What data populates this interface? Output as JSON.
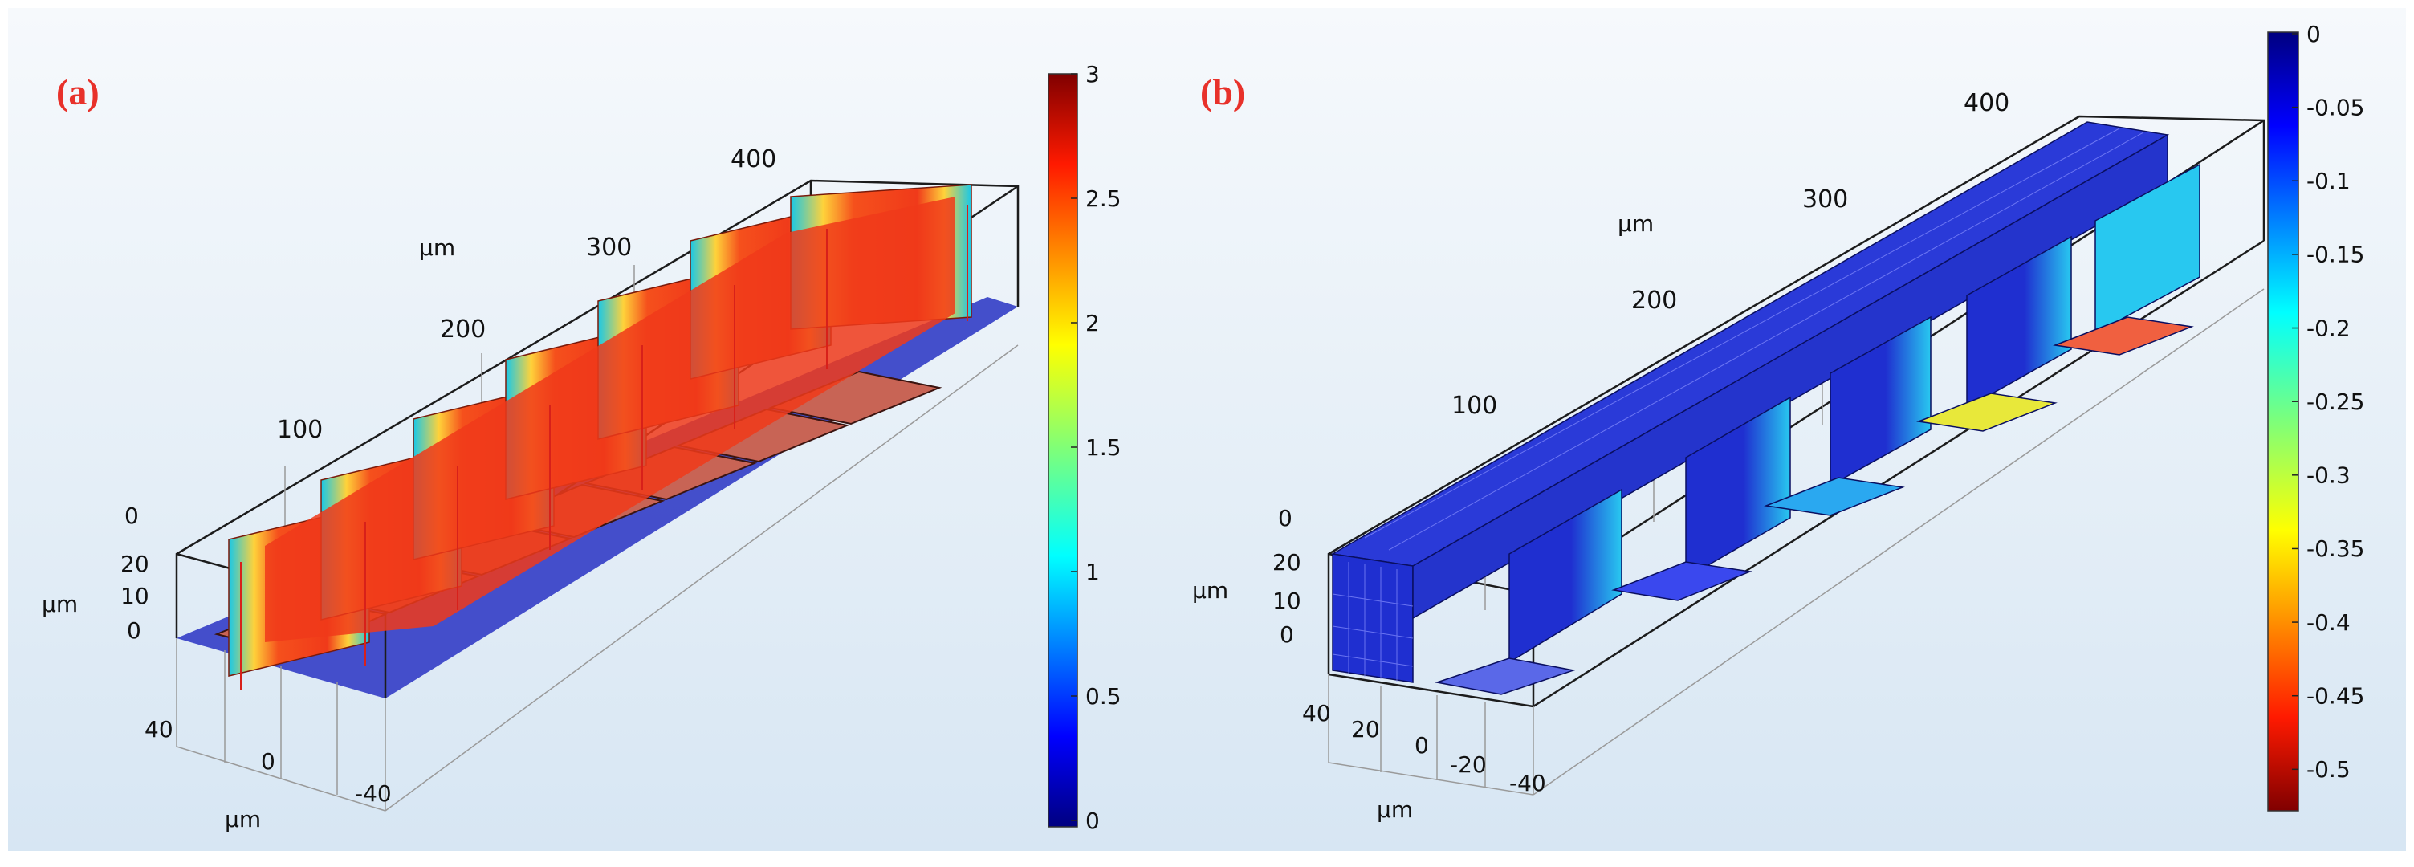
{
  "panels": [
    {
      "label": "(a)",
      "axis_unit": "μm",
      "length_ticks": [
        "100",
        "200",
        "300",
        "400"
      ],
      "height_ticks": [
        "0",
        "10",
        "20"
      ],
      "height_top_tick": "0",
      "width_ticks": [
        "40",
        "0",
        "-40"
      ],
      "colorbar": {
        "min": 0,
        "max": 3,
        "ticks": [
          "3",
          "2.5",
          "2",
          "1.5",
          "1",
          "0.5",
          "0"
        ]
      }
    },
    {
      "label": "(b)",
      "axis_unit": "μm",
      "length_ticks": [
        "100",
        "200",
        "300",
        "400"
      ],
      "height_ticks": [
        "0",
        "10",
        "20"
      ],
      "height_top_tick": "0",
      "width_ticks": [
        "40",
        "20",
        "0",
        "-20",
        "-40"
      ],
      "colorbar": {
        "min": -0.52,
        "max": 0,
        "ticks": [
          "0",
          "-0.05",
          "-0.1",
          "-0.15",
          "-0.2",
          "-0.25",
          "-0.3",
          "-0.35",
          "-0.4",
          "-0.45",
          "-0.5"
        ]
      }
    }
  ],
  "colors": {
    "background_top": "#f6f9fc",
    "background_bottom": "#d7e6f3",
    "panel_label": "#e8312a",
    "floor": "#3b46c8",
    "slab_a": "#c86455",
    "fin_red": "#f03a1a",
    "block_blue": "#1f2fd0"
  }
}
